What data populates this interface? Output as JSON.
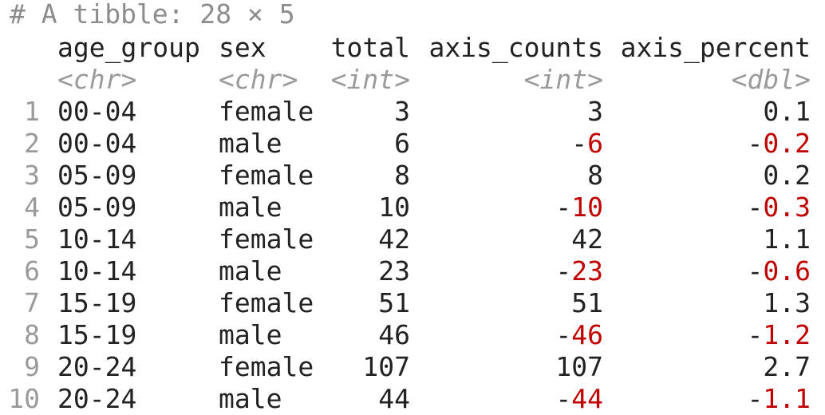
{
  "title": "# A tibble: 28 × 5",
  "columns": [
    {
      "name": "age_group",
      "type": "<chr>"
    },
    {
      "name": "sex",
      "type": "<chr>"
    },
    {
      "name": "total",
      "type": "<int>"
    },
    {
      "name": "axis_counts",
      "type": "<int>"
    },
    {
      "name": "axis_percent",
      "type": "<dbl>"
    }
  ],
  "colors": {
    "negative": "#c00000",
    "muted": "#9a9a9a",
    "text": "#222222"
  },
  "rows": [
    {
      "n": "1",
      "age_group": "00-04",
      "sex": "female",
      "total": "3",
      "axis_counts": "3",
      "axis_percent": "0.1"
    },
    {
      "n": "2",
      "age_group": "00-04",
      "sex": "male",
      "total": "6",
      "axis_counts": "-6",
      "axis_percent": "-0.2"
    },
    {
      "n": "3",
      "age_group": "05-09",
      "sex": "female",
      "total": "8",
      "axis_counts": "8",
      "axis_percent": "0.2"
    },
    {
      "n": "4",
      "age_group": "05-09",
      "sex": "male",
      "total": "10",
      "axis_counts": "-10",
      "axis_percent": "-0.3"
    },
    {
      "n": "5",
      "age_group": "10-14",
      "sex": "female",
      "total": "42",
      "axis_counts": "42",
      "axis_percent": "1.1"
    },
    {
      "n": "6",
      "age_group": "10-14",
      "sex": "male",
      "total": "23",
      "axis_counts": "-23",
      "axis_percent": "-0.6"
    },
    {
      "n": "7",
      "age_group": "15-19",
      "sex": "female",
      "total": "51",
      "axis_counts": "51",
      "axis_percent": "1.3"
    },
    {
      "n": "8",
      "age_group": "15-19",
      "sex": "male",
      "total": "46",
      "axis_counts": "-46",
      "axis_percent": "-1.2"
    },
    {
      "n": "9",
      "age_group": "20-24",
      "sex": "female",
      "total": "107",
      "axis_counts": "107",
      "axis_percent": "2.7"
    },
    {
      "n": "10",
      "age_group": "20-24",
      "sex": "male",
      "total": "44",
      "axis_counts": "-44",
      "axis_percent": "-1.1"
    }
  ]
}
